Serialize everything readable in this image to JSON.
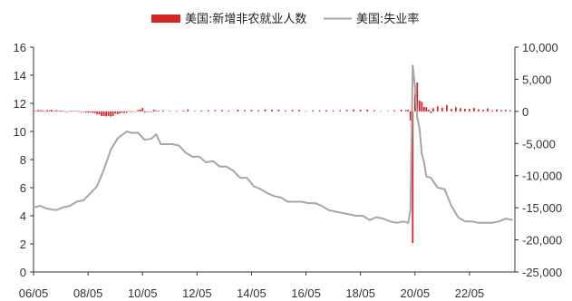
{
  "chart_data": {
    "type": "bar+line",
    "legend": {
      "placement": "top-center",
      "entries": [
        {
          "name": "美国:新增非农就业人数",
          "kind": "bar",
          "color": "#d62728"
        },
        {
          "name": "美国:失业率",
          "kind": "line",
          "color": "#a6a6a6"
        }
      ]
    },
    "x_axis": {
      "tick_labels": [
        "06/05",
        "08/05",
        "10/05",
        "12/05",
        "14/05",
        "16/05",
        "18/05",
        "20/05",
        "22/05"
      ],
      "range": [
        "2006-05",
        "2024-01"
      ]
    },
    "y_left": {
      "range": [
        0,
        16
      ],
      "tick_labels": [
        "0",
        "2",
        "4",
        "6",
        "8",
        "10",
        "12",
        "14",
        "16"
      ]
    },
    "y_right": {
      "range": [
        -25000,
        10000
      ],
      "tick_labels": [
        "-25,000",
        "-20,000",
        "-15,000",
        "-10,000",
        "-5,000",
        "0",
        "5,000",
        "10,000"
      ]
    },
    "series": [
      {
        "name": "美国:失业率",
        "axis": "left",
        "type": "line",
        "color": "#a6a6a6",
        "points": [
          [
            "2006-05",
            4.6
          ],
          [
            "2006-08",
            4.7
          ],
          [
            "2006-11",
            4.5
          ],
          [
            "2007-03",
            4.4
          ],
          [
            "2007-06",
            4.6
          ],
          [
            "2007-09",
            4.7
          ],
          [
            "2007-12",
            5.0
          ],
          [
            "2008-03",
            5.1
          ],
          [
            "2008-06",
            5.6
          ],
          [
            "2008-09",
            6.1
          ],
          [
            "2008-12",
            7.3
          ],
          [
            "2009-03",
            8.7
          ],
          [
            "2009-06",
            9.5
          ],
          [
            "2009-10",
            10.0
          ],
          [
            "2009-12",
            9.9
          ],
          [
            "2010-03",
            9.9
          ],
          [
            "2010-06",
            9.4
          ],
          [
            "2010-09",
            9.5
          ],
          [
            "2010-11",
            9.8
          ],
          [
            "2011-01",
            9.1
          ],
          [
            "2011-06",
            9.1
          ],
          [
            "2011-09",
            9.0
          ],
          [
            "2011-12",
            8.5
          ],
          [
            "2012-03",
            8.2
          ],
          [
            "2012-06",
            8.2
          ],
          [
            "2012-09",
            7.8
          ],
          [
            "2012-12",
            7.9
          ],
          [
            "2013-03",
            7.5
          ],
          [
            "2013-06",
            7.5
          ],
          [
            "2013-09",
            7.2
          ],
          [
            "2013-12",
            6.7
          ],
          [
            "2014-03",
            6.7
          ],
          [
            "2014-06",
            6.1
          ],
          [
            "2014-09",
            5.9
          ],
          [
            "2014-12",
            5.6
          ],
          [
            "2015-03",
            5.4
          ],
          [
            "2015-06",
            5.3
          ],
          [
            "2015-09",
            5.0
          ],
          [
            "2015-12",
            5.0
          ],
          [
            "2016-03",
            5.0
          ],
          [
            "2016-06",
            4.9
          ],
          [
            "2016-09",
            4.9
          ],
          [
            "2016-12",
            4.7
          ],
          [
            "2017-03",
            4.4
          ],
          [
            "2017-06",
            4.3
          ],
          [
            "2017-09",
            4.2
          ],
          [
            "2017-12",
            4.1
          ],
          [
            "2018-03",
            4.0
          ],
          [
            "2018-06",
            4.0
          ],
          [
            "2018-09",
            3.7
          ],
          [
            "2018-12",
            3.9
          ],
          [
            "2019-03",
            3.8
          ],
          [
            "2019-06",
            3.6
          ],
          [
            "2019-09",
            3.5
          ],
          [
            "2019-12",
            3.6
          ],
          [
            "2020-02",
            3.5
          ],
          [
            "2020-03",
            4.4
          ],
          [
            "2020-04",
            14.7
          ],
          [
            "2020-05",
            13.2
          ],
          [
            "2020-06",
            11.0
          ],
          [
            "2020-07",
            10.2
          ],
          [
            "2020-08",
            8.4
          ],
          [
            "2020-09",
            7.8
          ],
          [
            "2020-10",
            6.8
          ],
          [
            "2020-12",
            6.7
          ],
          [
            "2021-03",
            6.0
          ],
          [
            "2021-06",
            5.9
          ],
          [
            "2021-09",
            4.7
          ],
          [
            "2021-12",
            3.9
          ],
          [
            "2022-03",
            3.6
          ],
          [
            "2022-06",
            3.6
          ],
          [
            "2022-09",
            3.5
          ],
          [
            "2022-12",
            3.5
          ],
          [
            "2023-03",
            3.5
          ],
          [
            "2023-06",
            3.6
          ],
          [
            "2023-09",
            3.8
          ],
          [
            "2023-12",
            3.7
          ]
        ]
      },
      {
        "name": "美国:新增非农就业人数",
        "axis": "right",
        "type": "bar",
        "color": "#d62728",
        "points": [
          [
            "2006-05",
            100
          ],
          [
            "2006-06",
            80
          ],
          [
            "2006-07",
            200
          ],
          [
            "2006-08",
            180
          ],
          [
            "2006-09",
            160
          ],
          [
            "2006-10",
            0
          ],
          [
            "2006-11",
            200
          ],
          [
            "2006-12",
            170
          ],
          [
            "2007-01",
            240
          ],
          [
            "2007-02",
            90
          ],
          [
            "2007-03",
            190
          ],
          [
            "2007-04",
            80
          ],
          [
            "2007-05",
            140
          ],
          [
            "2007-06",
            80
          ],
          [
            "2007-07",
            -30
          ],
          [
            "2007-08",
            -20
          ],
          [
            "2007-09",
            80
          ],
          [
            "2007-10",
            90
          ],
          [
            "2007-11",
            60
          ],
          [
            "2007-12",
            100
          ],
          [
            "2008-01",
            20
          ],
          [
            "2008-02",
            -90
          ],
          [
            "2008-03",
            -80
          ],
          [
            "2008-04",
            -210
          ],
          [
            "2008-05",
            -190
          ],
          [
            "2008-06",
            -170
          ],
          [
            "2008-07",
            -210
          ],
          [
            "2008-08",
            -270
          ],
          [
            "2008-09",
            -460
          ],
          [
            "2008-10",
            -480
          ],
          [
            "2008-11",
            -730
          ],
          [
            "2008-12",
            -710
          ],
          [
            "2009-01",
            -790
          ],
          [
            "2009-02",
            -700
          ],
          [
            "2009-03",
            -800
          ],
          [
            "2009-04",
            -700
          ],
          [
            "2009-05",
            -330
          ],
          [
            "2009-06",
            -450
          ],
          [
            "2009-07",
            -330
          ],
          [
            "2009-08",
            -210
          ],
          [
            "2009-09",
            -230
          ],
          [
            "2009-10",
            -210
          ],
          [
            "2009-11",
            60
          ],
          [
            "2009-12",
            -110
          ],
          [
            "2010-01",
            20
          ],
          [
            "2010-02",
            -60
          ],
          [
            "2010-03",
            200
          ],
          [
            "2010-04",
            280
          ],
          [
            "2010-05",
            530
          ],
          [
            "2010-06",
            -200
          ],
          [
            "2010-07",
            -80
          ],
          [
            "2010-08",
            -10
          ],
          [
            "2010-09",
            -40
          ],
          [
            "2010-10",
            250
          ],
          [
            "2010-11",
            120
          ],
          [
            "2010-12",
            100
          ],
          [
            "2011-02",
            180
          ],
          [
            "2011-05",
            100
          ],
          [
            "2011-08",
            100
          ],
          [
            "2011-11",
            140
          ],
          [
            "2012-01",
            310
          ],
          [
            "2012-04",
            80
          ],
          [
            "2012-07",
            150
          ],
          [
            "2012-10",
            180
          ],
          [
            "2013-01",
            190
          ],
          [
            "2013-04",
            200
          ],
          [
            "2013-07",
            150
          ],
          [
            "2013-11",
            270
          ],
          [
            "2014-02",
            190
          ],
          [
            "2014-05",
            230
          ],
          [
            "2014-08",
            170
          ],
          [
            "2014-11",
            310
          ],
          [
            "2015-02",
            270
          ],
          [
            "2015-05",
            280
          ],
          [
            "2015-08",
            140
          ],
          [
            "2015-11",
            230
          ],
          [
            "2016-02",
            240
          ],
          [
            "2016-05",
            40
          ],
          [
            "2016-08",
            170
          ],
          [
            "2016-11",
            160
          ],
          [
            "2017-02",
            200
          ],
          [
            "2017-05",
            150
          ],
          [
            "2017-08",
            180
          ],
          [
            "2017-11",
            220
          ],
          [
            "2018-02",
            310
          ],
          [
            "2018-05",
            260
          ],
          [
            "2018-08",
            270
          ],
          [
            "2018-11",
            180
          ],
          [
            "2019-02",
            20
          ],
          [
            "2019-05",
            60
          ],
          [
            "2019-08",
            160
          ],
          [
            "2019-11",
            250
          ],
          [
            "2020-01",
            220
          ],
          [
            "2020-02",
            250
          ],
          [
            "2020-03",
            -1400
          ],
          [
            "2020-04",
            -20500
          ],
          [
            "2020-05",
            2700
          ],
          [
            "2020-06",
            4500
          ],
          [
            "2020-07",
            1700
          ],
          [
            "2020-08",
            1500
          ],
          [
            "2020-09",
            700
          ],
          [
            "2020-10",
            650
          ],
          [
            "2020-11",
            260
          ],
          [
            "2020-12",
            -260
          ],
          [
            "2021-01",
            500
          ],
          [
            "2021-03",
            780
          ],
          [
            "2021-05",
            560
          ],
          [
            "2021-07",
            1000
          ],
          [
            "2021-09",
            380
          ],
          [
            "2021-11",
            650
          ],
          [
            "2022-01",
            500
          ],
          [
            "2022-03",
            400
          ],
          [
            "2022-05",
            380
          ],
          [
            "2022-07",
            530
          ],
          [
            "2022-09",
            320
          ],
          [
            "2022-11",
            260
          ],
          [
            "2023-01",
            470
          ],
          [
            "2023-03",
            150
          ],
          [
            "2023-05",
            300
          ],
          [
            "2023-07",
            190
          ],
          [
            "2023-09",
            250
          ],
          [
            "2023-11",
            180
          ]
        ]
      }
    ]
  }
}
